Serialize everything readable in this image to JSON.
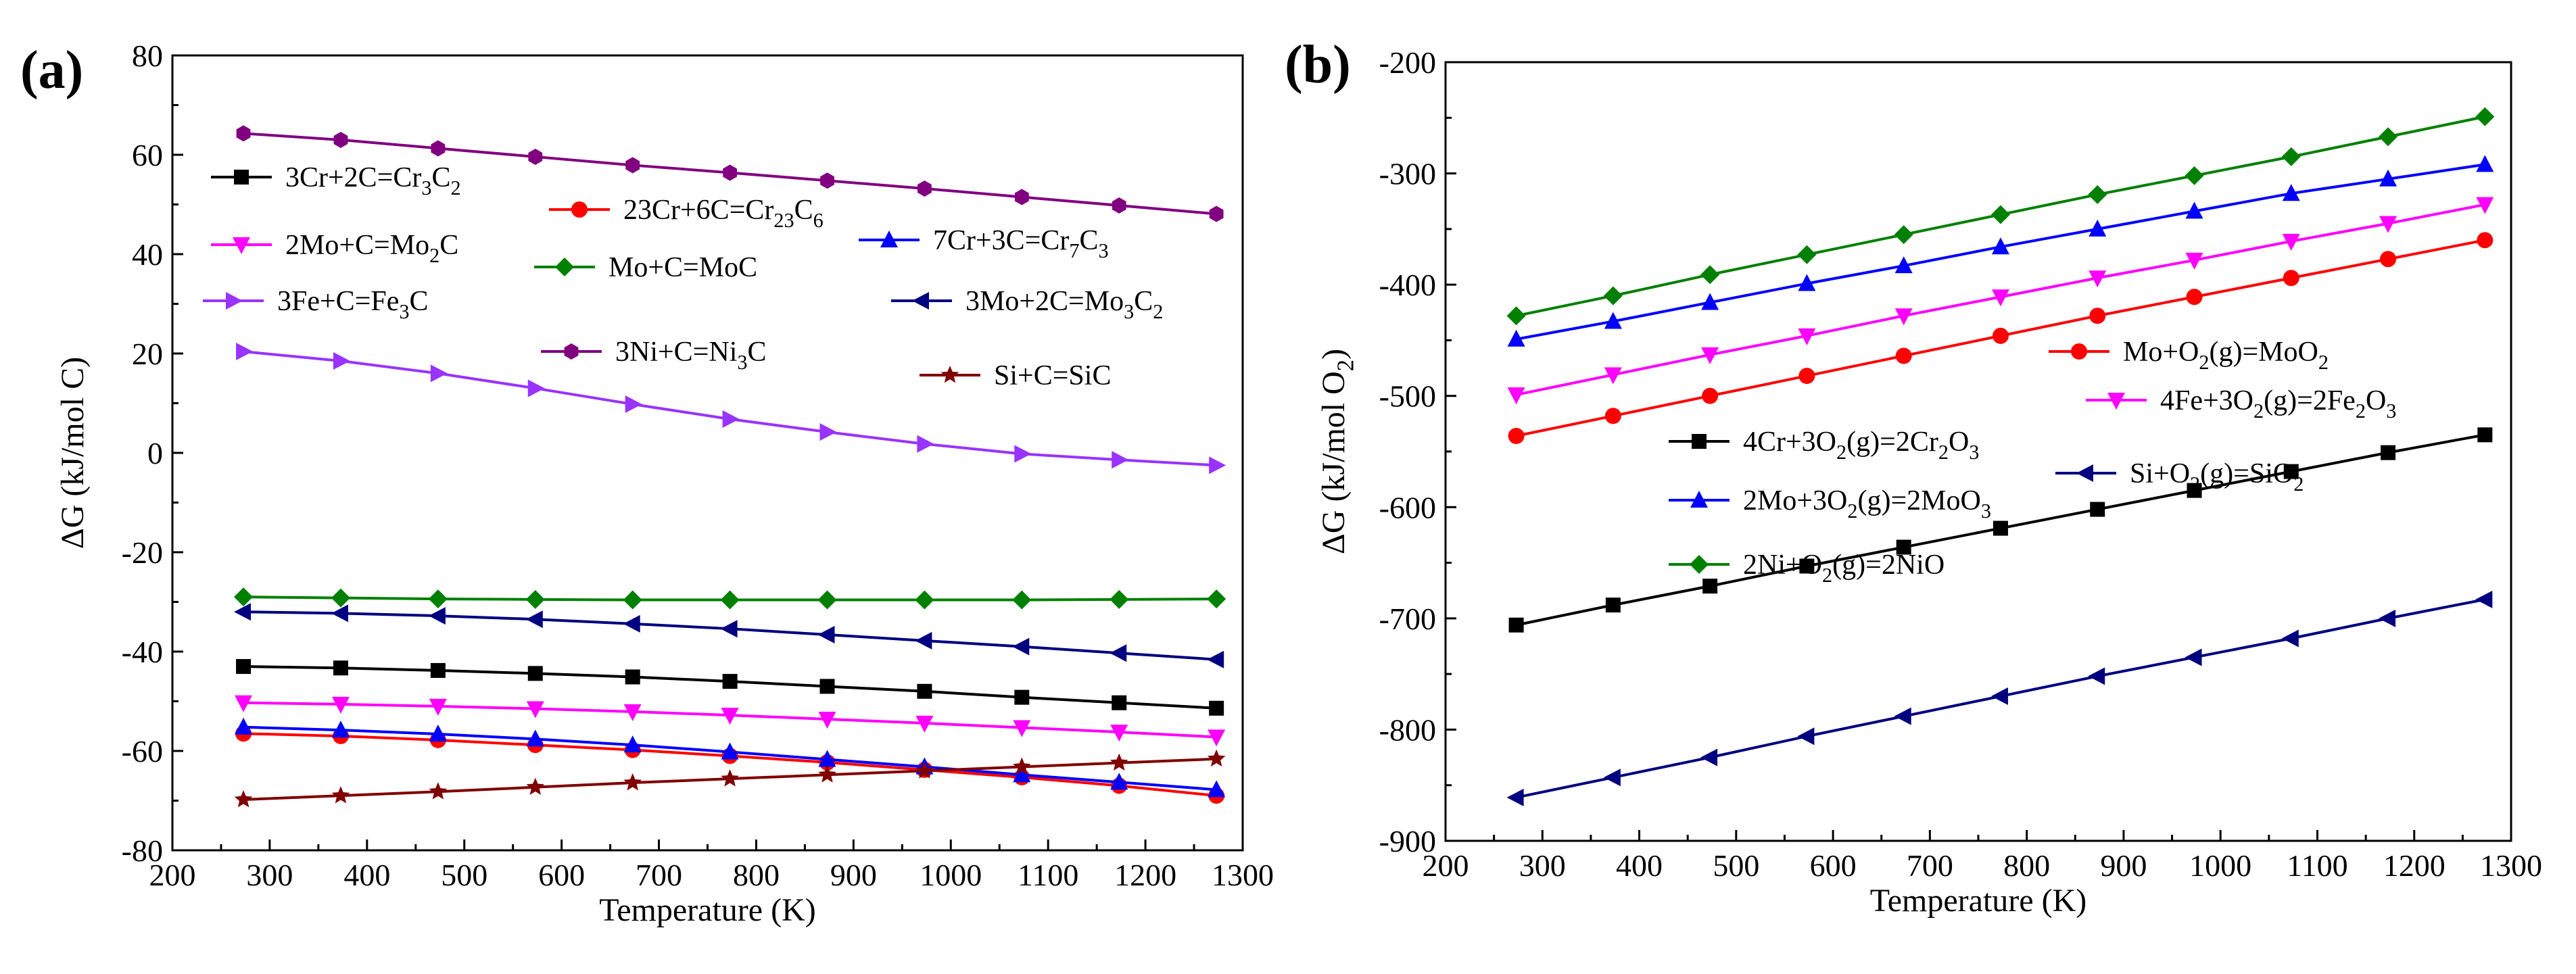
{
  "chart_data": [
    {
      "panel": "(a)",
      "type": "line",
      "xlabel": "Temperature (K)",
      "ylabel": "ΔG (kJ/mol C)",
      "xlim": [
        200,
        1300
      ],
      "ylim": [
        -80,
        80
      ],
      "xticks": [
        200,
        300,
        400,
        500,
        600,
        700,
        800,
        900,
        1000,
        1100,
        1200,
        1300
      ],
      "yticks": [
        -80,
        -60,
        -40,
        -20,
        0,
        20,
        40,
        60,
        80
      ],
      "x": [
        273,
        373,
        473,
        573,
        673,
        773,
        873,
        973,
        1073,
        1173,
        1273
      ],
      "series": [
        {
          "name": "3Cr+2C=Cr3C2",
          "label_parts": [
            [
              "3Cr+2C=Cr",
              0
            ],
            [
              "3",
              1
            ],
            [
              "C",
              0
            ],
            [
              "2",
              1
            ]
          ],
          "color": "#000000",
          "marker": "square",
          "values": [
            -43.0,
            -43.3,
            -43.8,
            -44.4,
            -45.1,
            -46.0,
            -47.0,
            -48.0,
            -49.2,
            -50.3,
            -51.4
          ]
        },
        {
          "name": "23Cr+6C=Cr23C6",
          "label_parts": [
            [
              "23Cr+6C=Cr",
              0
            ],
            [
              "23",
              1
            ],
            [
              "C",
              0
            ],
            [
              "6",
              1
            ]
          ],
          "color": "#ff0000",
          "marker": "circle",
          "values": [
            -56.5,
            -57.0,
            -57.8,
            -58.8,
            -59.8,
            -61.0,
            -62.3,
            -63.8,
            -65.3,
            -67.0,
            -69.0
          ]
        },
        {
          "name": "7Cr+3C=Cr7C3",
          "label_parts": [
            [
              "7Cr+3C=Cr",
              0
            ],
            [
              "7",
              1
            ],
            [
              "C",
              0
            ],
            [
              "3",
              1
            ]
          ],
          "color": "#0000ff",
          "marker": "triangle-up",
          "values": [
            -55.2,
            -55.8,
            -56.6,
            -57.6,
            -58.8,
            -60.2,
            -61.7,
            -63.2,
            -64.8,
            -66.3,
            -67.8
          ]
        },
        {
          "name": "2Mo+C=Mo2C",
          "label_parts": [
            [
              "2Mo+C=Mo",
              0
            ],
            [
              "2",
              1
            ],
            [
              "C",
              0
            ]
          ],
          "color": "#ff00ff",
          "marker": "triangle-down",
          "values": [
            -50.3,
            -50.6,
            -51.0,
            -51.5,
            -52.1,
            -52.8,
            -53.6,
            -54.4,
            -55.3,
            -56.2,
            -57.2
          ]
        },
        {
          "name": "Mo+C=MoC",
          "label_parts": [
            [
              "Mo+C=MoC",
              0
            ]
          ],
          "color": "#008000",
          "marker": "diamond",
          "values": [
            -29.0,
            -29.2,
            -29.4,
            -29.5,
            -29.6,
            -29.6,
            -29.6,
            -29.6,
            -29.6,
            -29.5,
            -29.4
          ]
        },
        {
          "name": "3Fe+C=Fe3C",
          "label_parts": [
            [
              "3Fe+C=Fe",
              0
            ],
            [
              "3",
              1
            ],
            [
              "C",
              0
            ]
          ],
          "color": "#9933ff",
          "marker": "triangle-right",
          "values": [
            20.4,
            18.5,
            16.0,
            13.0,
            9.8,
            6.8,
            4.2,
            1.8,
            -0.2,
            -1.4,
            -2.5
          ]
        },
        {
          "name": "3Mo+2C=Mo3C2",
          "label_parts": [
            [
              "3Mo+2C=Mo",
              0
            ],
            [
              "3",
              1
            ],
            [
              "C",
              0
            ],
            [
              "2",
              1
            ]
          ],
          "color": "#000080",
          "marker": "triangle-left",
          "values": [
            -32.0,
            -32.3,
            -32.8,
            -33.5,
            -34.4,
            -35.4,
            -36.6,
            -37.8,
            -39.0,
            -40.3,
            -41.6
          ]
        },
        {
          "name": "3Ni+C=Ni3C",
          "label_parts": [
            [
              "3Ni+C=Ni",
              0
            ],
            [
              "3",
              1
            ],
            [
              "C",
              0
            ]
          ],
          "color": "#800080",
          "marker": "hexagon",
          "values": [
            64.3,
            63.0,
            61.3,
            59.6,
            57.9,
            56.4,
            54.8,
            53.2,
            51.5,
            49.8,
            48.1
          ]
        },
        {
          "name": "Si+C=SiC",
          "label_parts": [
            [
              "Si+C=SiC",
              0
            ]
          ],
          "color": "#800000",
          "marker": "star",
          "values": [
            -69.8,
            -69.0,
            -68.2,
            -67.3,
            -66.4,
            -65.6,
            -64.8,
            -64.0,
            -63.2,
            -62.4,
            -61.6
          ]
        }
      ]
    },
    {
      "panel": "(b)",
      "type": "line",
      "xlabel": "Temperature (K)",
      "ylabel": "ΔG (kJ/mol O2)",
      "ylabel_parts": [
        [
          "ΔG (kJ/mol O",
          0
        ],
        [
          "2",
          1
        ],
        [
          ")",
          0
        ]
      ],
      "xlim": [
        200,
        1300
      ],
      "ylim": [
        -900,
        -200
      ],
      "xticks": [
        200,
        300,
        400,
        500,
        600,
        700,
        800,
        900,
        1000,
        1100,
        1200,
        1300
      ],
      "yticks": [
        -900,
        -800,
        -700,
        -600,
        -500,
        -400,
        -300,
        -200
      ],
      "x": [
        273,
        373,
        473,
        573,
        673,
        773,
        873,
        973,
        1073,
        1173,
        1273
      ],
      "series": [
        {
          "name": "4Cr+3O2(g)=2Cr2O3",
          "label_parts": [
            [
              "4Cr+3O",
              0
            ],
            [
              "2",
              1
            ],
            [
              "(g)=2Cr",
              0
            ],
            [
              "2",
              1
            ],
            [
              "O",
              0
            ],
            [
              "3",
              1
            ]
          ],
          "color": "#000000",
          "marker": "square",
          "values": [
            -706,
            -688,
            -671,
            -653,
            -636,
            -619,
            -602,
            -585,
            -568,
            -551,
            -535
          ]
        },
        {
          "name": "Mo+O2(g)=MoO2",
          "label_parts": [
            [
              "Mo+O",
              0
            ],
            [
              "2",
              1
            ],
            [
              "(g)=MoO",
              0
            ],
            [
              "2",
              1
            ]
          ],
          "color": "#ff0000",
          "marker": "circle",
          "values": [
            -536,
            -518,
            -500,
            -482,
            -464,
            -446,
            -428,
            -411,
            -394,
            -377,
            -360
          ]
        },
        {
          "name": "4Fe+3O2(g)=2Fe2O3",
          "label_parts": [
            [
              "4Fe+3O",
              0
            ],
            [
              "2",
              1
            ],
            [
              "(g)=2Fe",
              0
            ],
            [
              "2",
              1
            ],
            [
              "O",
              0
            ],
            [
              "3",
              1
            ]
          ],
          "color": "#ff00ff",
          "marker": "triangle-down",
          "values": [
            -499,
            -481,
            -463,
            -446,
            -428,
            -411,
            -394,
            -378,
            -361,
            -345,
            -328
          ]
        },
        {
          "name": "2Mo+3O2(g)=2MoO3",
          "label_parts": [
            [
              "2Mo+3O",
              0
            ],
            [
              "2",
              1
            ],
            [
              "(g)=2MoO",
              0
            ],
            [
              "3",
              1
            ]
          ],
          "color": "#0000ff",
          "marker": "triangle-up",
          "values": [
            -449,
            -433,
            -416,
            -399,
            -383,
            -366,
            -350,
            -334,
            -318,
            -305,
            -292
          ]
        },
        {
          "name": "Si+O2(g)=SiO2",
          "label_parts": [
            [
              "Si+O",
              0
            ],
            [
              "2",
              1
            ],
            [
              "(g)=SiO",
              0
            ],
            [
              "2",
              1
            ]
          ],
          "color": "#000080",
          "marker": "triangle-left",
          "values": [
            -861,
            -843,
            -825,
            -806,
            -788,
            -770,
            -752,
            -735,
            -718,
            -700,
            -683
          ]
        },
        {
          "name": "2Ni+O2(g)=2NiO",
          "label_parts": [
            [
              "2Ni+O",
              0
            ],
            [
              "2",
              1
            ],
            [
              "(g)=2NiO",
              0
            ]
          ],
          "color": "#008000",
          "marker": "diamond",
          "values": [
            -428,
            -410,
            -391,
            -373,
            -355,
            -337,
            -319,
            -302,
            -285,
            -267,
            -249
          ]
        }
      ]
    }
  ]
}
